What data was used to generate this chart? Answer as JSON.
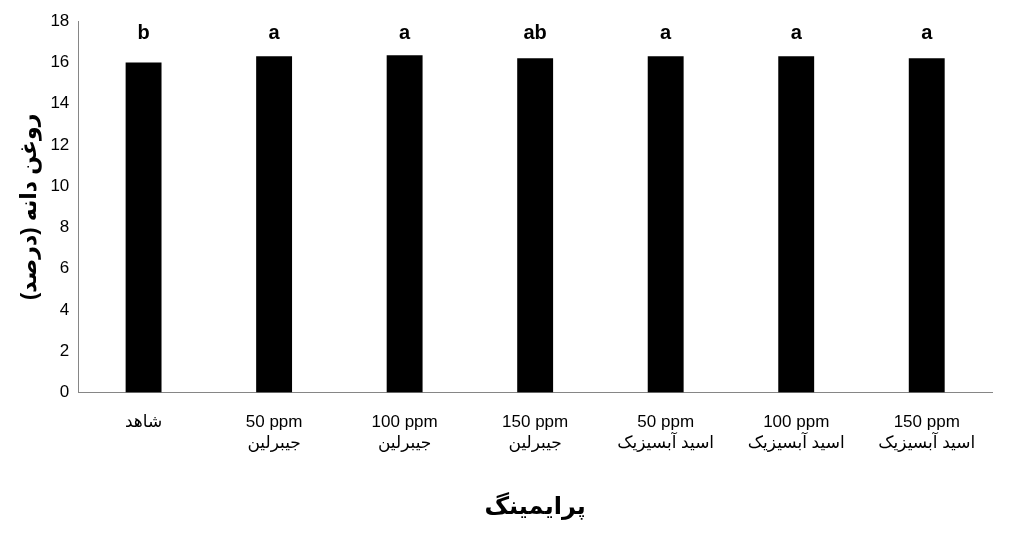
{
  "chart_data": {
    "type": "bar",
    "xlabel": "پرایمینگ",
    "ylabel": "روغن دانه (درصد)",
    "categories": [
      "شاهد",
      "50 ppm\nجیبرلین",
      "100 ppm\nجیبرلین",
      "150 ppm\nجیبرلین",
      "50 ppm\nاسید آبسیزیک",
      "100 ppm\nاسید آبسیزیک",
      "150 ppm\nاسید آبسیزیک"
    ],
    "values": [
      16.0,
      16.3,
      16.35,
      16.2,
      16.3,
      16.3,
      16.2
    ],
    "value_labels": [
      "b",
      "a",
      "a",
      "ab",
      "a",
      "a",
      "a"
    ],
    "color": "#000000",
    "ylim": [
      0,
      18
    ],
    "yticks": [
      0,
      2,
      4,
      6,
      8,
      10,
      12,
      14,
      16,
      18
    ],
    "grid": false,
    "legend": false
  }
}
